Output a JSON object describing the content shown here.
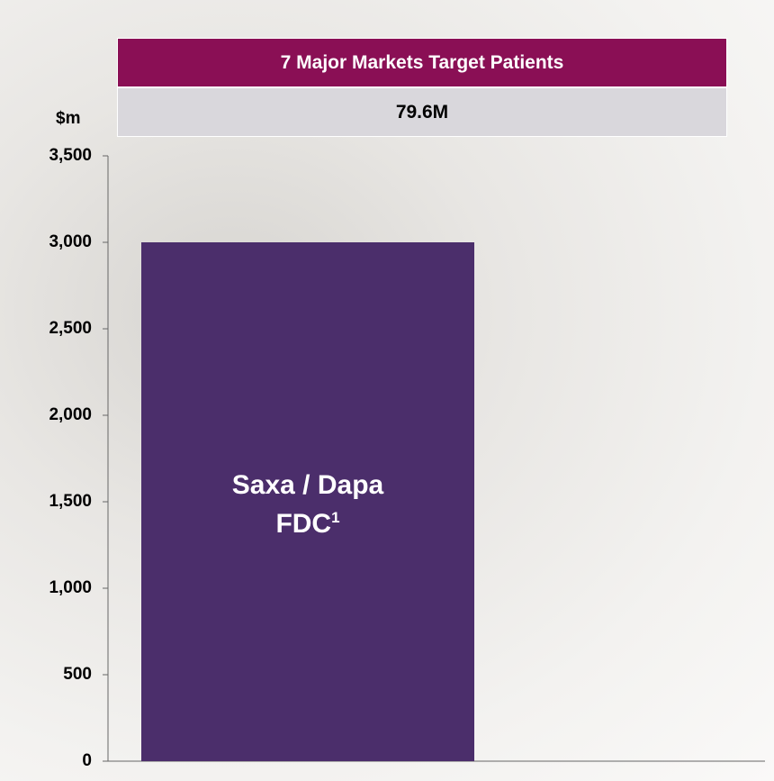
{
  "chart_data": {
    "type": "bar",
    "header": "7 Major Markets Target Patients",
    "subheader": "79.6M",
    "y_axis_label": "$m",
    "categories": [
      "Saxa / Dapa FDC"
    ],
    "footnote_marker": "1",
    "values": [
      3000
    ],
    "color": "#4b2e6b",
    "ylim": [
      0,
      3500
    ],
    "yticks": [
      0,
      500,
      {
        "value": 1000,
        "label": "1,000"
      },
      {
        "value": 1500,
        "label": "1,500"
      },
      {
        "value": 2000,
        "label": "2,000"
      },
      {
        "value": 2500,
        "label": "2,500"
      },
      {
        "value": 3000,
        "label": "3,000"
      },
      {
        "value": 3500,
        "label": "3,500"
      }
    ]
  }
}
